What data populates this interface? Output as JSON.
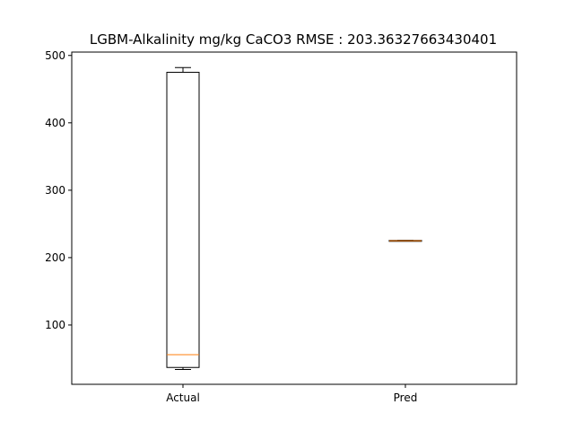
{
  "chart_data": {
    "type": "box",
    "title": "LGBM-Alkalinity mg/kg CaCO3 RMSE : 203.36327663430401",
    "xlabel": "",
    "ylabel": "",
    "categories": [
      "Actual",
      "Pred"
    ],
    "ylim": [
      12,
      505
    ],
    "yticks": [
      100,
      200,
      300,
      400,
      500
    ],
    "boxes": [
      {
        "name": "Actual",
        "whisker_low": 34,
        "q1": 37,
        "median": 56,
        "q3": 475,
        "whisker_high": 482
      },
      {
        "name": "Pred",
        "whisker_low": 224.5,
        "q1": 224.5,
        "median": 225,
        "q3": 225.5,
        "whisker_high": 225.5
      }
    ],
    "colors": {
      "box": "#000000",
      "median": "#ff7f0e"
    }
  }
}
